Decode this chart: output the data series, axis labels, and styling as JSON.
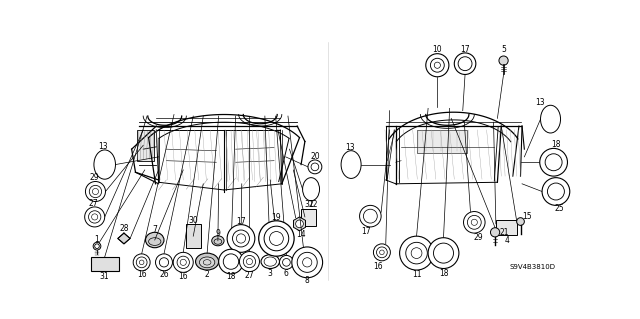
{
  "background_color": "#ffffff",
  "figure_width": 6.4,
  "figure_height": 3.19,
  "dpi": 100,
  "watermark": "S9V4B3810D",
  "gray": "#888888",
  "light_gray": "#cccccc",
  "mid_gray": "#aaaaaa"
}
